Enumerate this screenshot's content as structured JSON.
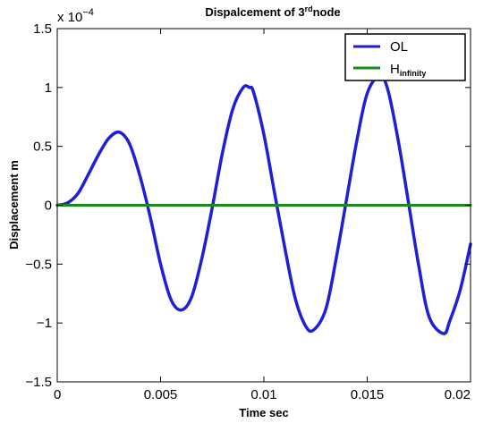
{
  "chart_data": {
    "type": "line",
    "title": {
      "prefix": "Dispalcement of 3",
      "superscript": "rd",
      "suffix": "node"
    },
    "xlabel": "Time sec",
    "ylabel": "Displacement m",
    "y_exponent_label": {
      "base": "x 10",
      "exponent": "−4"
    },
    "xlim": [
      0,
      0.02
    ],
    "ylim": [
      -1.5,
      1.5
    ],
    "y_scale_factor": "1e-4",
    "xticks": [
      {
        "value": 0,
        "label": "0"
      },
      {
        "value": 0.005,
        "label": "0.005"
      },
      {
        "value": 0.01,
        "label": "0.01"
      },
      {
        "value": 0.015,
        "label": "0.015"
      },
      {
        "value": 0.02,
        "label": "0.02"
      }
    ],
    "yticks": [
      {
        "value": 1.5,
        "label": "1.5"
      },
      {
        "value": 1,
        "label": "1"
      },
      {
        "value": 0.5,
        "label": "0.5"
      },
      {
        "value": 0,
        "label": "0"
      },
      {
        "value": -0.5,
        "label": "−0.5"
      },
      {
        "value": -1,
        "label": "−1"
      },
      {
        "value": -1.5,
        "label": "−1.5"
      }
    ],
    "grid": false,
    "legend_placement": "top-right",
    "series": [
      {
        "name": "OL",
        "color": "#1f1fd6",
        "x": [
          0,
          0.0005,
          0.001,
          0.0015,
          0.002,
          0.0025,
          0.003,
          0.0035,
          0.004,
          0.0045,
          0.005,
          0.0055,
          0.006,
          0.0065,
          0.007,
          0.0075,
          0.008,
          0.0085,
          0.009,
          0.0093,
          0.0095,
          0.01,
          0.0105,
          0.011,
          0.0115,
          0.012,
          0.0124,
          0.013,
          0.0135,
          0.014,
          0.0145,
          0.015,
          0.0156,
          0.016,
          0.0165,
          0.017,
          0.0175,
          0.018,
          0.0187,
          0.019,
          0.0195,
          0.02
        ],
        "values": [
          0,
          0.02,
          0.1,
          0.26,
          0.43,
          0.57,
          0.62,
          0.52,
          0.25,
          -0.1,
          -0.5,
          -0.8,
          -0.89,
          -0.78,
          -0.45,
          -0.02,
          0.45,
          0.82,
          1.0,
          1.0,
          0.96,
          0.6,
          0.12,
          -0.35,
          -0.78,
          -1.02,
          -1.06,
          -0.88,
          -0.45,
          0.05,
          0.55,
          0.95,
          1.1,
          0.98,
          0.55,
          0.02,
          -0.52,
          -0.95,
          -1.09,
          -0.98,
          -0.72,
          -0.33
        ]
      },
      {
        "name_main": "H",
        "name_sub": "infinity",
        "color": "#1a8a1a",
        "x": [
          0,
          0.02
        ],
        "values": [
          0,
          0
        ]
      }
    ]
  }
}
